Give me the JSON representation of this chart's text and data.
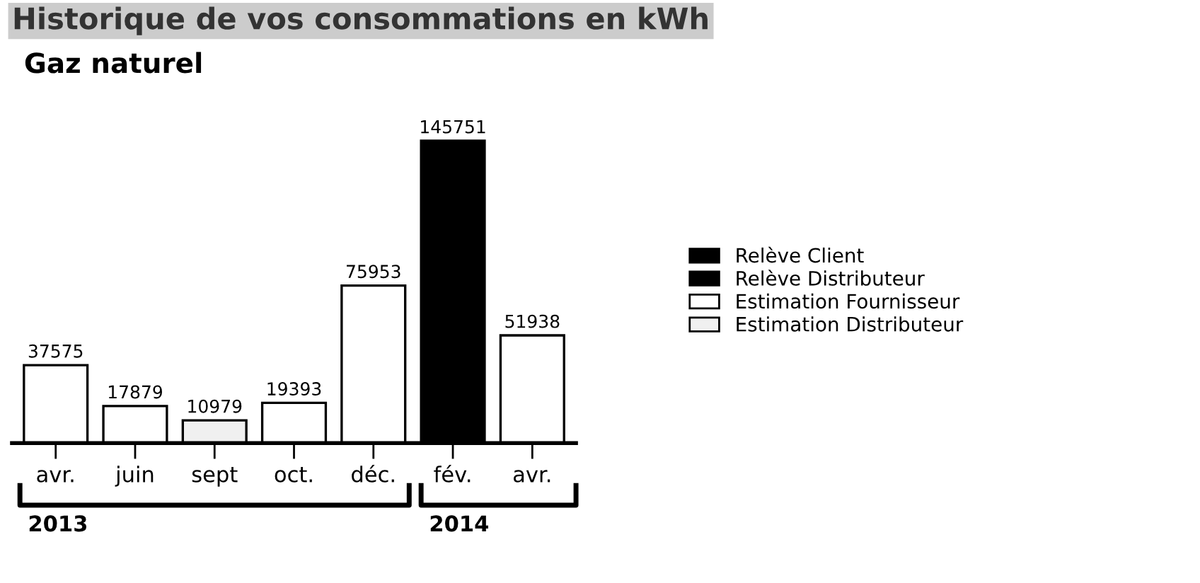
{
  "chart_data": {
    "type": "bar",
    "title": "Historique de vos consommations en kWh",
    "subtitle": "Gaz naturel",
    "categories": [
      "avr.",
      "juin",
      "sept",
      "oct.",
      "déc.",
      "fév.",
      "avr."
    ],
    "series": [
      {
        "name": "Relève Client",
        "color": "#000000",
        "values": [
          null,
          null,
          null,
          null,
          null,
          null,
          null
        ]
      },
      {
        "name": "Relève Distributeur",
        "color": "#000000",
        "values": [
          null,
          null,
          null,
          null,
          null,
          145751,
          null
        ]
      },
      {
        "name": "Estimation Fournisseur",
        "color": "#ffffff",
        "values": [
          37575,
          17879,
          null,
          19393,
          75953,
          null,
          51938
        ]
      },
      {
        "name": "Estimation Distributeur",
        "color": "#f0f0f0",
        "values": [
          null,
          null,
          10979,
          null,
          null,
          null,
          null
        ]
      }
    ],
    "annotations": [
      "2013",
      "2014"
    ],
    "data_labels": true,
    "legend": "right",
    "grid": false
  }
}
